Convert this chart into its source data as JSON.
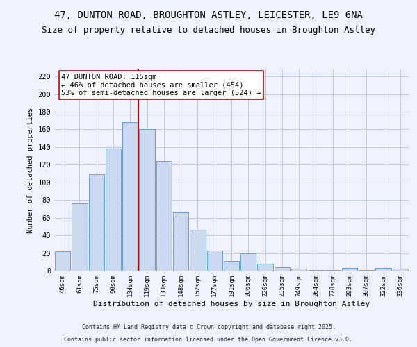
{
  "title_line1": "47, DUNTON ROAD, BROUGHTON ASTLEY, LEICESTER, LE9 6NA",
  "title_line2": "Size of property relative to detached houses in Broughton Astley",
  "xlabel": "Distribution of detached houses by size in Broughton Astley",
  "ylabel": "Number of detached properties",
  "bin_labels": [
    "46sqm",
    "61sqm",
    "75sqm",
    "90sqm",
    "104sqm",
    "119sqm",
    "133sqm",
    "148sqm",
    "162sqm",
    "177sqm",
    "191sqm",
    "206sqm",
    "220sqm",
    "235sqm",
    "249sqm",
    "264sqm",
    "278sqm",
    "293sqm",
    "307sqm",
    "322sqm",
    "336sqm"
  ],
  "bar_values": [
    22,
    76,
    109,
    138,
    168,
    160,
    124,
    66,
    46,
    23,
    11,
    20,
    8,
    4,
    2,
    1,
    1,
    3,
    1,
    3,
    2
  ],
  "bar_color": "#c8d9f0",
  "bar_edge_color": "#6ea0cc",
  "vline_index": 4.5,
  "vline_color": "#cc0000",
  "annotation_text": "47 DUNTON ROAD: 115sqm\n← 46% of detached houses are smaller (454)\n53% of semi-detached houses are larger (524) →",
  "annotation_box_color": "#ffffff",
  "annotation_box_edge": "#cc0000",
  "ylim": [
    0,
    228
  ],
  "yticks": [
    0,
    20,
    40,
    60,
    80,
    100,
    120,
    140,
    160,
    180,
    200,
    220
  ],
  "footnote1": "Contains HM Land Registry data © Crown copyright and database right 2025.",
  "footnote2": "Contains public sector information licensed under the Open Government Licence v3.0.",
  "bg_color": "#eef2ff",
  "plot_bg_color": "#eef2ff",
  "title_fontsize": 10,
  "subtitle_fontsize": 9,
  "grid_color": "#b0b8d8"
}
